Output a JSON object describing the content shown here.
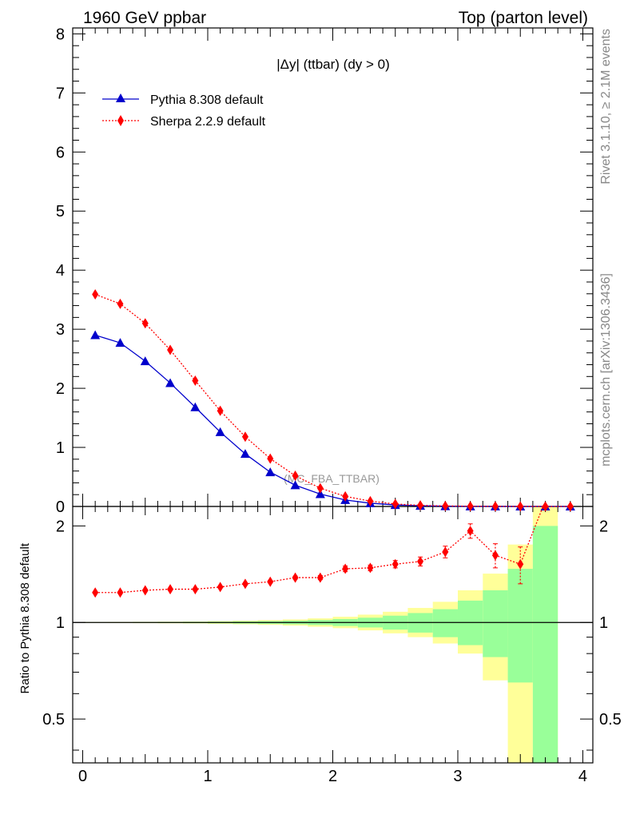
{
  "header": {
    "left_title": "1960 GeV ppbar",
    "right_title": "Top (parton level)"
  },
  "side_labels": {
    "rivet": "Rivet 3.1.10, ≥ 2.1M events",
    "mcplots": "mcplots.cern.ch [arXiv:1306.3436]"
  },
  "colors": {
    "pythia": "#0000cc",
    "sherpa": "#ff0000",
    "band_inner": "#99ff99",
    "band_outer": "#ffff99"
  },
  "chart_data": [
    {
      "type": "line",
      "panel": "main",
      "title": "|Δy| (ttbar) (dy > 0)",
      "watermark": "(MC_FBA_TTBAR)",
      "xlim": [
        -0.08,
        4.08
      ],
      "ylim": [
        0,
        8.1
      ],
      "y_ticks": [
        0,
        1,
        2,
        3,
        4,
        5,
        6,
        7,
        8
      ],
      "legend": {
        "position": "top-left"
      },
      "x": [
        0.1,
        0.3,
        0.5,
        0.7,
        0.9,
        1.1,
        1.3,
        1.5,
        1.7,
        1.9,
        2.1,
        2.3,
        2.5,
        2.7,
        2.9,
        3.1,
        3.3,
        3.5,
        3.7,
        3.9
      ],
      "series": [
        {
          "name": "Pythia 8.308 default",
          "marker": "triangle",
          "line": "solid",
          "values": [
            2.9,
            2.77,
            2.46,
            2.09,
            1.68,
            1.26,
            0.89,
            0.58,
            0.36,
            0.21,
            0.11,
            0.055,
            0.026,
            0.012,
            0.005,
            0.002,
            0.001,
            0.0005,
            0.0002,
            0.0001
          ]
        },
        {
          "name": "Sherpa 2.2.9 default",
          "marker": "diamond",
          "line": "dotted",
          "values": [
            3.59,
            3.43,
            3.1,
            2.65,
            2.13,
            1.62,
            1.18,
            0.81,
            0.52,
            0.31,
            0.17,
            0.09,
            0.042,
            0.019,
            0.009,
            0.004,
            0.0017,
            0.0008,
            0.0004,
            0.0002
          ]
        }
      ]
    },
    {
      "type": "line",
      "panel": "ratio",
      "ylabel": "Ratio to Pythia 8.308 default",
      "xlim": [
        -0.08,
        4.08
      ],
      "ylim": [
        0.365,
        2.3
      ],
      "y_scale": "log",
      "y_ticks": [
        0.5,
        1,
        2
      ],
      "x_ticks": [
        0,
        1,
        2,
        3,
        4
      ],
      "reference": 1,
      "bands": {
        "x_low": [
          0,
          0.2,
          0.4,
          0.6,
          0.8,
          1.0,
          1.2,
          1.4,
          1.6,
          1.8,
          2.0,
          2.2,
          2.4,
          2.6,
          2.8,
          3.0,
          3.2,
          3.4,
          3.6
        ],
        "x_high": [
          0.2,
          0.4,
          0.6,
          0.8,
          1.0,
          1.2,
          1.4,
          1.6,
          1.8,
          2.0,
          2.2,
          2.4,
          2.6,
          2.8,
          3.0,
          3.2,
          3.4,
          3.6,
          3.8
        ],
        "inner_low": [
          0.998,
          0.998,
          0.997,
          0.996,
          0.995,
          0.994,
          0.992,
          0.99,
          0.987,
          0.982,
          0.975,
          0.965,
          0.95,
          0.93,
          0.9,
          0.85,
          0.78,
          0.65,
          0.36
        ],
        "inner_high": [
          1.002,
          1.002,
          1.003,
          1.004,
          1.005,
          1.006,
          1.008,
          1.01,
          1.013,
          1.018,
          1.025,
          1.035,
          1.05,
          1.07,
          1.1,
          1.17,
          1.26,
          1.47,
          2.0
        ],
        "outer_low": [
          0.997,
          0.996,
          0.995,
          0.994,
          0.993,
          0.99,
          0.987,
          0.983,
          0.978,
          0.97,
          0.96,
          0.945,
          0.925,
          0.9,
          0.86,
          0.8,
          0.66,
          0.36,
          0.36
        ],
        "outer_high": [
          1.003,
          1.004,
          1.005,
          1.006,
          1.007,
          1.01,
          1.013,
          1.017,
          1.022,
          1.03,
          1.042,
          1.058,
          1.08,
          1.11,
          1.16,
          1.26,
          1.42,
          1.75,
          2.3
        ]
      },
      "x": [
        0.1,
        0.3,
        0.5,
        0.7,
        0.9,
        1.1,
        1.3,
        1.5,
        1.7,
        1.9,
        2.1,
        2.3,
        2.5,
        2.7,
        2.9,
        3.1,
        3.3,
        3.5,
        3.7
      ],
      "series": [
        {
          "name": "Sherpa 2.2.9 default",
          "marker": "diamond",
          "line": "dotted",
          "values": [
            1.24,
            1.24,
            1.26,
            1.27,
            1.27,
            1.29,
            1.32,
            1.34,
            1.38,
            1.38,
            1.47,
            1.48,
            1.52,
            1.55,
            1.66,
            1.93,
            1.62,
            1.52,
            2.4
          ],
          "err_low": [
            0.004,
            0.004,
            0.005,
            0.006,
            0.007,
            0.008,
            0.009,
            0.012,
            0.015,
            0.02,
            0.03,
            0.03,
            0.04,
            0.05,
            0.07,
            0.1,
            0.14,
            0.2,
            0.5
          ],
          "err_high": [
            0.004,
            0.004,
            0.005,
            0.006,
            0.007,
            0.008,
            0.009,
            0.012,
            0.015,
            0.02,
            0.03,
            0.03,
            0.04,
            0.05,
            0.07,
            0.1,
            0.14,
            0.2,
            0.5
          ]
        }
      ]
    }
  ]
}
